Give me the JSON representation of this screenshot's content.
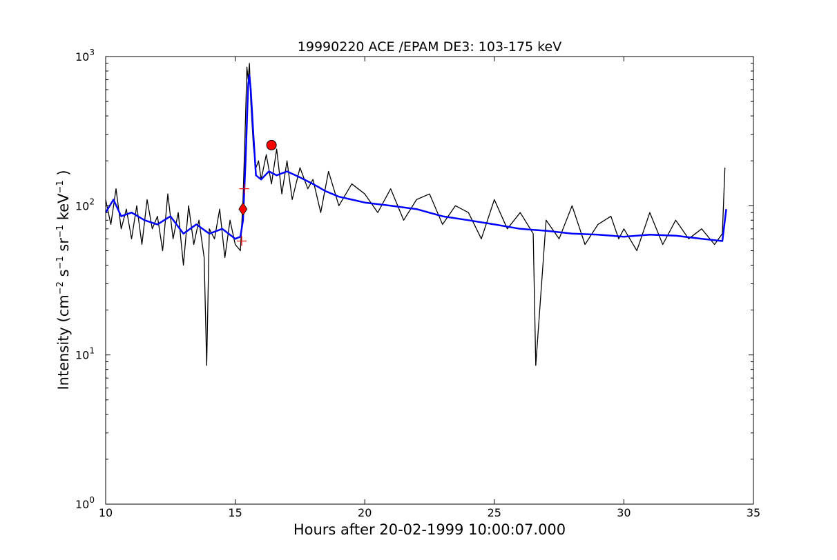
{
  "chart_data": {
    "type": "line",
    "title": "19990220 ACE /EPAM DE3: 103-175 keV",
    "xlabel": "Hours after 20-02-1999 10:00:07.000",
    "ylabel": {
      "prefix": "Intensity (cm",
      "sup1": "−2",
      "mid1": " s",
      "sup2": "−1",
      "mid2": " sr",
      "sup3": "−1",
      "mid3": " keV",
      "sup4": "−1",
      "suffix": " )"
    },
    "xlim": [
      10,
      35
    ],
    "ylim": [
      1,
      1000
    ],
    "yscale": "log",
    "grid": false,
    "xticks": [
      10,
      15,
      20,
      25,
      30,
      35
    ],
    "xtick_labels": [
      "10",
      "15",
      "20",
      "25",
      "30",
      "35"
    ],
    "yticks": [
      1,
      10,
      100,
      1000
    ],
    "ytick_labels": [
      {
        "base": "10",
        "exp": "0"
      },
      {
        "base": "10",
        "exp": "1"
      },
      {
        "base": "10",
        "exp": "2"
      },
      {
        "base": "10",
        "exp": "3"
      }
    ],
    "series": [
      {
        "color": "#000000",
        "kind": "raw",
        "x": [
          10.0,
          10.2,
          10.4,
          10.6,
          10.8,
          11.0,
          11.2,
          11.4,
          11.6,
          11.8,
          12.0,
          12.2,
          12.4,
          12.6,
          12.8,
          13.0,
          13.2,
          13.4,
          13.6,
          13.8,
          13.9,
          14.0,
          14.2,
          14.4,
          14.6,
          14.8,
          15.0,
          15.2,
          15.3,
          15.4,
          15.45,
          15.5,
          15.55,
          15.6,
          15.7,
          15.8,
          15.9,
          16.0,
          16.2,
          16.4,
          16.6,
          16.8,
          17.0,
          17.2,
          17.5,
          17.8,
          18.0,
          18.3,
          18.6,
          19.0,
          19.5,
          20.0,
          20.5,
          21.0,
          21.5,
          22.0,
          22.5,
          23.0,
          23.5,
          24.0,
          24.5,
          25.0,
          25.5,
          26.0,
          26.5,
          26.6,
          27.0,
          27.5,
          28.0,
          28.5,
          29.0,
          29.5,
          29.8,
          30.0,
          30.5,
          31.0,
          31.5,
          32.0,
          32.5,
          33.0,
          33.5,
          33.8,
          33.9
        ],
        "values": [
          110,
          75,
          130,
          70,
          95,
          60,
          100,
          55,
          110,
          70,
          85,
          50,
          120,
          60,
          90,
          40,
          100,
          55,
          80,
          45,
          8.5,
          70,
          60,
          95,
          45,
          80,
          55,
          50,
          110,
          400,
          850,
          700,
          900,
          500,
          250,
          180,
          200,
          150,
          220,
          140,
          240,
          120,
          200,
          110,
          180,
          130,
          150,
          90,
          170,
          100,
          140,
          120,
          90,
          130,
          80,
          110,
          120,
          75,
          100,
          90,
          60,
          110,
          70,
          90,
          65,
          8.5,
          80,
          60,
          100,
          55,
          75,
          85,
          60,
          70,
          50,
          90,
          55,
          80,
          60,
          70,
          55,
          65,
          180
        ]
      },
      {
        "color": "#0000ff",
        "kind": "smoothed",
        "x": [
          10.0,
          10.3,
          10.6,
          11.0,
          11.5,
          12.0,
          12.5,
          13.0,
          13.5,
          14.0,
          14.5,
          15.0,
          15.2,
          15.3,
          15.4,
          15.5,
          15.55,
          15.6,
          15.7,
          15.8,
          16.0,
          16.3,
          16.6,
          17.0,
          17.5,
          18.0,
          18.5,
          19.0,
          19.5,
          20.0,
          21.0,
          22.0,
          23.0,
          24.0,
          25.0,
          26.0,
          27.0,
          28.0,
          29.0,
          30.0,
          31.0,
          32.0,
          33.0,
          33.8,
          33.95
        ],
        "values": [
          90,
          110,
          85,
          90,
          80,
          75,
          85,
          65,
          75,
          65,
          70,
          60,
          62,
          80,
          200,
          650,
          750,
          600,
          300,
          160,
          150,
          170,
          160,
          170,
          155,
          140,
          125,
          115,
          110,
          105,
          100,
          95,
          85,
          80,
          75,
          70,
          68,
          65,
          64,
          62,
          64,
          63,
          60,
          58,
          95
        ]
      }
    ],
    "markers": [
      {
        "shape": "plus",
        "x": 15.35,
        "y": 130,
        "color": "#ff0000"
      },
      {
        "shape": "plus",
        "x": 15.25,
        "y": 58,
        "color": "#ff0000"
      },
      {
        "shape": "diamond",
        "x": 15.3,
        "y": 95,
        "color": "#ff0000"
      },
      {
        "shape": "circle",
        "x": 16.4,
        "y": 255,
        "color": "#ff0000"
      }
    ]
  }
}
